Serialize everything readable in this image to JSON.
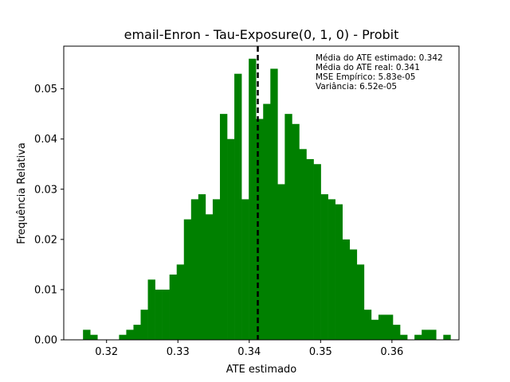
{
  "chart_data": {
    "type": "bar",
    "title": "email-Enron - Tau-Exposure(0, 1, 0) - Probit",
    "xlabel": "ATE estimado",
    "ylabel": "Frequência Relativa",
    "xlim": [
      0.314,
      0.3694
    ],
    "ylim": [
      0,
      0.0585
    ],
    "xticks": [
      0.32,
      0.33,
      0.34,
      0.35,
      0.36
    ],
    "xtick_labels": [
      "0.32",
      "0.33",
      "0.34",
      "0.35",
      "0.36"
    ],
    "yticks": [
      0.0,
      0.01,
      0.02,
      0.03,
      0.04,
      0.05
    ],
    "ytick_labels": [
      "0.00",
      "0.01",
      "0.02",
      "0.03",
      "0.04",
      "0.05"
    ],
    "bar_color": "#008000",
    "bins": {
      "start": 0.3167,
      "width": 0.00101,
      "values": [
        0.002,
        0.001,
        0.0,
        0.0,
        0.0,
        0.001,
        0.002,
        0.003,
        0.006,
        0.012,
        0.01,
        0.01,
        0.013,
        0.015,
        0.024,
        0.028,
        0.029,
        0.025,
        0.028,
        0.045,
        0.04,
        0.053,
        0.028,
        0.056,
        0.044,
        0.047,
        0.054,
        0.031,
        0.045,
        0.043,
        0.038,
        0.036,
        0.035,
        0.029,
        0.028,
        0.027,
        0.02,
        0.018,
        0.015,
        0.006,
        0.004,
        0.005,
        0.005,
        0.003,
        0.001,
        0.0,
        0.001,
        0.002,
        0.002,
        0.0,
        0.001
      ]
    },
    "vline": {
      "x": 0.3412,
      "style": "dashed",
      "color": "#000000"
    },
    "grid": false,
    "annotations": [
      "Média do ATE estimado: 0.342",
      "Média do ATE real: 0.341",
      "MSE Empírico: 5.83e-05",
      "Variância: 6.52e-05"
    ],
    "annotation_position": "top-right"
  }
}
